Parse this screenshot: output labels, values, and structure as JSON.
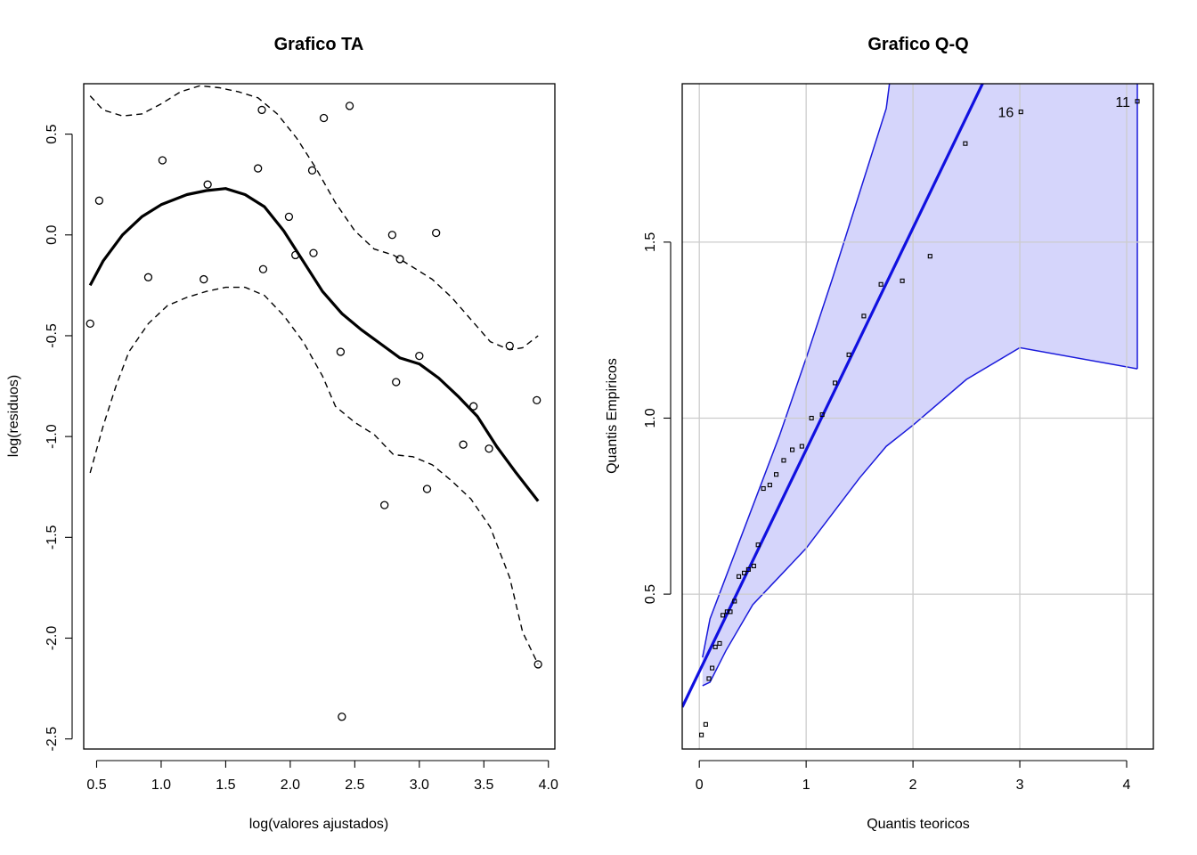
{
  "colors": {
    "envelope_fill": "#d5d5fb",
    "envelope_line": "#1a1adb",
    "reference_line": "#1010e0",
    "points": "#000000",
    "grid": "#cccccc"
  },
  "chart_data": [
    {
      "type": "scatter",
      "title": "Grafico TA",
      "xlabel": "log(valores ajustados)",
      "ylabel": "log(residuos)",
      "xlim": [
        0.4,
        4.05
      ],
      "ylim": [
        -2.55,
        0.75
      ],
      "xticks": [
        0.5,
        1.0,
        1.5,
        2.0,
        2.5,
        3.0,
        3.5,
        4.0
      ],
      "xtick_labels": [
        "0.5",
        "1.0",
        "1.5",
        "2.0",
        "2.5",
        "3.0",
        "3.5",
        "4.0"
      ],
      "yticks": [
        0.5,
        0.0,
        -0.5,
        -1.0,
        -1.5,
        -2.0,
        -2.5
      ],
      "ytick_labels": [
        "0.5",
        "0.0",
        "-0.5",
        "-1.0",
        "-1.5",
        "-2.0",
        "-2.5"
      ],
      "grid": false,
      "points": [
        [
          0.45,
          -0.44
        ],
        [
          0.52,
          0.17
        ],
        [
          0.9,
          -0.21
        ],
        [
          1.01,
          0.37
        ],
        [
          1.33,
          -0.22
        ],
        [
          1.36,
          0.25
        ],
        [
          1.75,
          0.33
        ],
        [
          1.78,
          0.62
        ],
        [
          1.79,
          -0.17
        ],
        [
          1.99,
          0.09
        ],
        [
          2.04,
          -0.1
        ],
        [
          2.17,
          0.32
        ],
        [
          2.18,
          -0.09
        ],
        [
          2.26,
          0.58
        ],
        [
          2.39,
          -0.58
        ],
        [
          2.4,
          -2.39
        ],
        [
          2.46,
          0.64
        ],
        [
          2.73,
          -1.34
        ],
        [
          2.79,
          -0.0
        ],
        [
          2.82,
          -0.73
        ],
        [
          2.85,
          -0.12
        ],
        [
          3.0,
          -0.6
        ],
        [
          3.06,
          -1.26
        ],
        [
          3.13,
          0.01
        ],
        [
          3.34,
          -1.04
        ],
        [
          3.42,
          -0.85
        ],
        [
          3.54,
          -1.06
        ],
        [
          3.7,
          -0.55
        ],
        [
          3.91,
          -0.82
        ],
        [
          3.92,
          -2.13
        ]
      ],
      "smooth": [
        [
          0.45,
          -0.25
        ],
        [
          0.55,
          -0.13
        ],
        [
          0.7,
          0.0
        ],
        [
          0.85,
          0.09
        ],
        [
          1.0,
          0.15
        ],
        [
          1.2,
          0.2
        ],
        [
          1.35,
          0.22
        ],
        [
          1.5,
          0.23
        ],
        [
          1.65,
          0.2
        ],
        [
          1.8,
          0.14
        ],
        [
          1.95,
          0.02
        ],
        [
          2.1,
          -0.13
        ],
        [
          2.25,
          -0.28
        ],
        [
          2.4,
          -0.39
        ],
        [
          2.55,
          -0.47
        ],
        [
          2.7,
          -0.54
        ],
        [
          2.85,
          -0.61
        ],
        [
          3.0,
          -0.64
        ],
        [
          3.15,
          -0.71
        ],
        [
          3.3,
          -0.8
        ],
        [
          3.45,
          -0.9
        ],
        [
          3.6,
          -1.05
        ],
        [
          3.75,
          -1.18
        ],
        [
          3.92,
          -1.32
        ]
      ],
      "upper_band": [
        [
          0.45,
          0.69
        ],
        [
          0.55,
          0.62
        ],
        [
          0.7,
          0.59
        ],
        [
          0.85,
          0.6
        ],
        [
          1.0,
          0.65
        ],
        [
          1.15,
          0.71
        ],
        [
          1.3,
          0.74
        ],
        [
          1.45,
          0.73
        ],
        [
          1.6,
          0.71
        ],
        [
          1.75,
          0.68
        ],
        [
          1.9,
          0.6
        ],
        [
          2.05,
          0.48
        ],
        [
          2.2,
          0.33
        ],
        [
          2.35,
          0.16
        ],
        [
          2.5,
          0.02
        ],
        [
          2.65,
          -0.07
        ],
        [
          2.8,
          -0.1
        ],
        [
          2.95,
          -0.16
        ],
        [
          3.1,
          -0.22
        ],
        [
          3.25,
          -0.31
        ],
        [
          3.4,
          -0.42
        ],
        [
          3.55,
          -0.53
        ],
        [
          3.7,
          -0.57
        ],
        [
          3.8,
          -0.56
        ],
        [
          3.92,
          -0.5
        ]
      ],
      "lower_band": [
        [
          0.45,
          -1.18
        ],
        [
          0.55,
          -0.95
        ],
        [
          0.65,
          -0.75
        ],
        [
          0.75,
          -0.58
        ],
        [
          0.9,
          -0.44
        ],
        [
          1.05,
          -0.35
        ],
        [
          1.2,
          -0.31
        ],
        [
          1.35,
          -0.28
        ],
        [
          1.5,
          -0.26
        ],
        [
          1.65,
          -0.26
        ],
        [
          1.8,
          -0.3
        ],
        [
          1.95,
          -0.4
        ],
        [
          2.1,
          -0.53
        ],
        [
          2.25,
          -0.7
        ],
        [
          2.35,
          -0.85
        ],
        [
          2.5,
          -0.93
        ],
        [
          2.65,
          -0.99
        ],
        [
          2.8,
          -1.09
        ],
        [
          2.95,
          -1.1
        ],
        [
          3.1,
          -1.14
        ],
        [
          3.25,
          -1.22
        ],
        [
          3.4,
          -1.31
        ],
        [
          3.55,
          -1.45
        ],
        [
          3.7,
          -1.7
        ],
        [
          3.8,
          -1.97
        ],
        [
          3.92,
          -2.13
        ]
      ]
    },
    {
      "type": "scatter",
      "title": "Grafico Q-Q",
      "xlabel": "Quantis teoricos",
      "ylabel": "Quantis Empiricos",
      "xlim": [
        -0.16,
        4.25
      ],
      "ylim": [
        0.06,
        1.95
      ],
      "xticks": [
        0,
        1,
        2,
        3,
        4
      ],
      "xtick_labels": [
        "0",
        "1",
        "2",
        "3",
        "4"
      ],
      "yticks": [
        0.5,
        1.0,
        1.5
      ],
      "ytick_labels": [
        "0.5",
        "1.0",
        "1.5"
      ],
      "grid": true,
      "points": [
        [
          0.02,
          0.1
        ],
        [
          0.06,
          0.13
        ],
        [
          0.09,
          0.26
        ],
        [
          0.12,
          0.29
        ],
        [
          0.15,
          0.35
        ],
        [
          0.19,
          0.36
        ],
        [
          0.22,
          0.44
        ],
        [
          0.26,
          0.45
        ],
        [
          0.29,
          0.45
        ],
        [
          0.33,
          0.48
        ],
        [
          0.37,
          0.55
        ],
        [
          0.42,
          0.56
        ],
        [
          0.46,
          0.57
        ],
        [
          0.51,
          0.58
        ],
        [
          0.55,
          0.64
        ],
        [
          0.6,
          0.8
        ],
        [
          0.66,
          0.81
        ],
        [
          0.72,
          0.84
        ],
        [
          0.79,
          0.88
        ],
        [
          0.87,
          0.91
        ],
        [
          0.96,
          0.92
        ],
        [
          1.05,
          1.0
        ],
        [
          1.15,
          1.01
        ],
        [
          1.27,
          1.1
        ],
        [
          1.4,
          1.18
        ],
        [
          1.54,
          1.29
        ],
        [
          1.7,
          1.38
        ],
        [
          1.9,
          1.39
        ],
        [
          2.16,
          1.46
        ],
        [
          2.49,
          1.78
        ],
        [
          3.01,
          1.87
        ],
        [
          4.1,
          1.9
        ]
      ],
      "labelled_points": [
        {
          "label": "16",
          "x": 3.01,
          "y": 1.87
        },
        {
          "label": "11",
          "x": 4.1,
          "y": 1.9
        }
      ],
      "reference_line": {
        "intercept": 0.28,
        "slope": 0.63
      },
      "envelope_upper": [
        [
          0.03,
          0.32
        ],
        [
          0.1,
          0.43
        ],
        [
          0.25,
          0.55
        ],
        [
          0.5,
          0.75
        ],
        [
          0.75,
          0.95
        ],
        [
          1.0,
          1.17
        ],
        [
          1.25,
          1.4
        ],
        [
          1.5,
          1.64
        ],
        [
          1.75,
          1.88
        ],
        [
          1.78,
          1.95
        ]
      ],
      "envelope_lower": [
        [
          0.03,
          0.24
        ],
        [
          0.1,
          0.25
        ],
        [
          0.25,
          0.34
        ],
        [
          0.5,
          0.47
        ],
        [
          0.75,
          0.55
        ],
        [
          1.0,
          0.63
        ],
        [
          1.25,
          0.73
        ],
        [
          1.5,
          0.83
        ],
        [
          1.75,
          0.92
        ],
        [
          2.0,
          0.98
        ],
        [
          2.5,
          1.11
        ],
        [
          3.0,
          1.2
        ],
        [
          4.1,
          1.14
        ]
      ]
    }
  ]
}
